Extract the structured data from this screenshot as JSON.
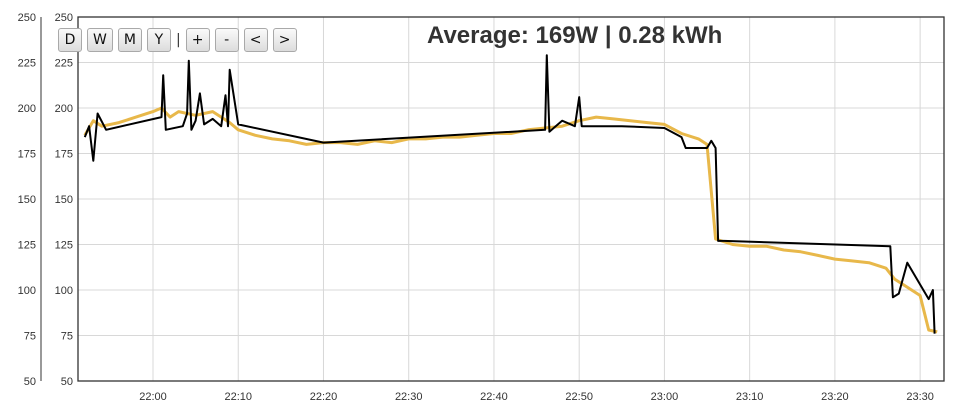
{
  "buttons": [
    {
      "label": "D"
    },
    {
      "label": "W"
    },
    {
      "label": "M"
    },
    {
      "label": "Y"
    },
    {
      "label": "+"
    },
    {
      "label": "-"
    },
    {
      "label": "<"
    },
    {
      "label": ">"
    }
  ],
  "separator": "|",
  "title": "Average: 169W | 0.28 kWh",
  "colors": {
    "axis": "#333333",
    "grid": "#d8d8d8",
    "series_raw": "#e8b84a",
    "series_avg": "#000000",
    "button_border": "#a9a9a9"
  },
  "chart_data": {
    "type": "line",
    "title": "Average: 169W | 0.28 kWh",
    "xlabel": "",
    "ylabel": "",
    "ylim": [
      50,
      250
    ],
    "xlim": [
      "21:52",
      "23:32"
    ],
    "grid": true,
    "y_ticks": [
      50,
      75,
      100,
      125,
      150,
      175,
      200,
      225,
      250
    ],
    "x_ticks": [
      "22:00",
      "22:10",
      "22:20",
      "22:30",
      "22:40",
      "22:50",
      "23:00",
      "23:10",
      "23:20",
      "23:30"
    ],
    "series": [
      {
        "color": "#e8b84a",
        "x": [
          "21:52",
          "21:53",
          "21:54",
          "21:56",
          "21:58",
          "22:00",
          "22:01",
          "22:02",
          "22:03",
          "22:05",
          "22:07",
          "22:09",
          "22:10",
          "22:12",
          "22:14",
          "22:16",
          "22:18",
          "22:20",
          "22:22",
          "22:24",
          "22:26",
          "22:28",
          "22:30",
          "22:32",
          "22:34",
          "22:36",
          "22:38",
          "22:40",
          "22:42",
          "22:44",
          "22:46",
          "22:48",
          "22:50",
          "22:52",
          "22:54",
          "22:56",
          "22:58",
          "23:00",
          "23:02",
          "23:04",
          "23:05",
          "23:06",
          "23:08",
          "23:10",
          "23:12",
          "23:14",
          "23:16",
          "23:18",
          "23:20",
          "23:22",
          "23:24",
          "23:26",
          "23:27",
          "23:28",
          "23:30",
          "23:31",
          "23:32"
        ],
        "values": [
          185,
          193,
          190,
          192,
          195,
          198,
          200,
          195,
          198,
          196,
          198,
          192,
          188,
          185,
          183,
          182,
          180,
          181,
          181,
          180,
          182,
          181,
          183,
          183,
          184,
          184,
          185,
          186,
          186,
          188,
          189,
          190,
          193,
          195,
          194,
          193,
          192,
          191,
          186,
          183,
          180,
          128,
          125,
          124,
          124,
          122,
          121,
          119,
          117,
          116,
          115,
          112,
          106,
          103,
          97,
          78,
          77
        ]
      },
      {
        "color": "#000000",
        "x": [
          "21:52",
          "21:52.5",
          "21:53",
          "21:53.5",
          "21:54.5",
          "22:01",
          "22:01.2",
          "22:01.5",
          "22:03.5",
          "22:04",
          "22:04.2",
          "22:04.5",
          "22:05",
          "22:05.5",
          "22:06",
          "22:07",
          "22:08",
          "22:08.5",
          "22:08.8",
          "22:09",
          "22:10",
          "22:20",
          "22:46",
          "22:46.2",
          "22:46.5",
          "22:48",
          "22:49.5",
          "22:50",
          "22:50.3",
          "22:55",
          "23:00",
          "23:02",
          "23:02.5",
          "23:05",
          "23:05.5",
          "23:06",
          "23:06.3",
          "23:07",
          "23:26.5",
          "23:26.8",
          "23:27.5",
          "23:28.5",
          "23:31",
          "23:31.5",
          "23:31.7"
        ],
        "values": [
          184,
          190,
          171,
          197,
          188,
          195,
          218,
          188,
          190,
          197,
          226,
          188,
          193,
          208,
          191,
          194,
          190,
          207,
          190,
          221,
          191,
          181,
          188,
          229,
          187,
          193,
          190,
          206,
          190,
          190,
          189,
          184,
          178,
          178,
          182,
          178,
          127,
          127,
          124,
          96,
          98,
          115,
          95,
          100,
          76
        ]
      }
    ]
  }
}
